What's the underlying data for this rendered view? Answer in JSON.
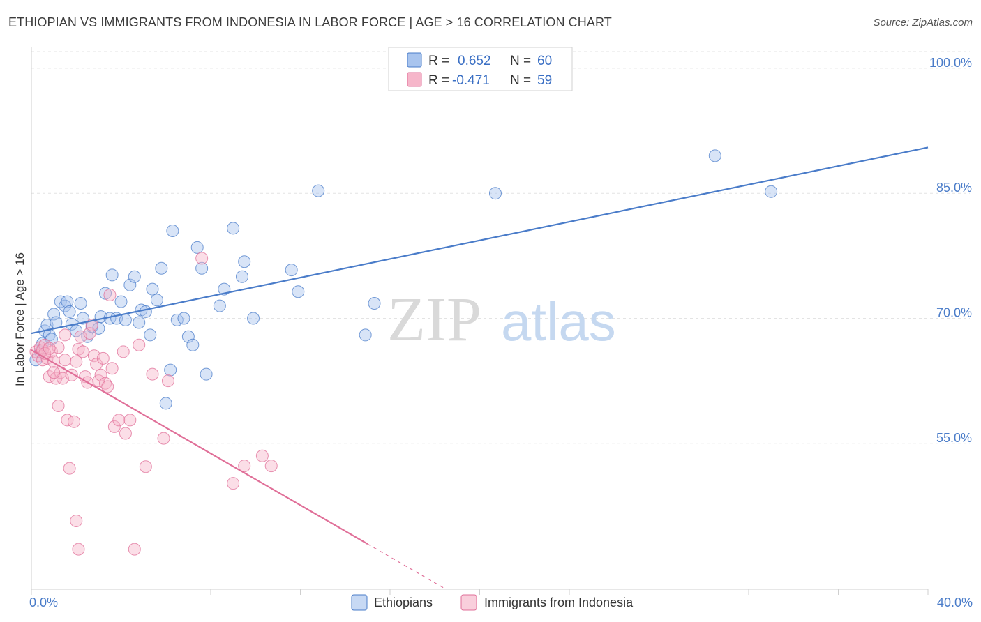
{
  "title": "ETHIOPIAN VS IMMIGRANTS FROM INDONESIA IN LABOR FORCE | AGE > 16 CORRELATION CHART",
  "source": "Source: ZipAtlas.com",
  "watermark": {
    "zip": "ZIP",
    "atlas": "atlas"
  },
  "legend_box": {
    "rows": [
      {
        "r_label": "R = ",
        "r_value": "0.652",
        "n_label": "N = ",
        "n_value": "60",
        "color": "#a8c4ee"
      },
      {
        "r_label": "R = ",
        "r_value": "-0.471",
        "n_label": "N = ",
        "n_value": "59",
        "color": "#f6b6ca"
      }
    ]
  },
  "chart_data": {
    "type": "scatter",
    "title": "ETHIOPIAN VS IMMIGRANTS FROM INDONESIA IN LABOR FORCE | AGE > 16 CORRELATION CHART",
    "xlabel": "",
    "ylabel": "In Labor Force | Age > 16",
    "xlim": [
      0,
      40
    ],
    "ylim": [
      37.5,
      102.5
    ],
    "x_tick_labels": [
      "0.0%",
      "40.0%"
    ],
    "y_ticks": [
      55,
      70,
      85,
      100
    ],
    "y_tick_labels": [
      "55.0%",
      "70.0%",
      "85.0%",
      "100.0%"
    ],
    "grid": true,
    "series": [
      {
        "name": "Ethiopians",
        "color": "#4a7cc9",
        "fill": "#a8c4ee",
        "trendline": {
          "x0": 0,
          "y0": 68.2,
          "x1": 40,
          "y1": 90.5,
          "dashed_from_x": null
        },
        "points": [
          [
            0.2,
            65.0
          ],
          [
            0.4,
            66.0
          ],
          [
            0.5,
            67.0
          ],
          [
            0.6,
            68.5
          ],
          [
            0.7,
            69.2
          ],
          [
            0.8,
            68.0
          ],
          [
            0.9,
            67.5
          ],
          [
            1.0,
            70.5
          ],
          [
            1.1,
            69.5
          ],
          [
            1.3,
            72.0
          ],
          [
            1.5,
            71.5
          ],
          [
            1.6,
            72.0
          ],
          [
            1.7,
            70.8
          ],
          [
            1.8,
            69.3
          ],
          [
            2.0,
            68.5
          ],
          [
            2.2,
            71.8
          ],
          [
            2.3,
            70.0
          ],
          [
            2.5,
            67.8
          ],
          [
            2.7,
            69.0
          ],
          [
            3.0,
            68.8
          ],
          [
            3.1,
            70.2
          ],
          [
            3.3,
            73.0
          ],
          [
            3.5,
            70.0
          ],
          [
            3.6,
            75.2
          ],
          [
            3.8,
            70.0
          ],
          [
            4.0,
            72.0
          ],
          [
            4.2,
            69.8
          ],
          [
            4.4,
            74.0
          ],
          [
            4.6,
            75.0
          ],
          [
            4.8,
            69.5
          ],
          [
            4.9,
            71.0
          ],
          [
            5.1,
            70.8
          ],
          [
            5.3,
            68.0
          ],
          [
            5.4,
            73.5
          ],
          [
            5.6,
            72.2
          ],
          [
            5.8,
            76.0
          ],
          [
            6.0,
            59.8
          ],
          [
            6.2,
            63.8
          ],
          [
            6.3,
            80.5
          ],
          [
            6.5,
            69.8
          ],
          [
            6.8,
            70.0
          ],
          [
            7.0,
            67.8
          ],
          [
            7.2,
            66.8
          ],
          [
            7.4,
            78.5
          ],
          [
            7.6,
            76.0
          ],
          [
            7.8,
            63.3
          ],
          [
            8.4,
            71.5
          ],
          [
            8.6,
            73.5
          ],
          [
            9.0,
            80.8
          ],
          [
            9.4,
            75.0
          ],
          [
            9.5,
            76.8
          ],
          [
            9.9,
            70.0
          ],
          [
            11.6,
            75.8
          ],
          [
            11.9,
            73.2
          ],
          [
            12.8,
            85.3
          ],
          [
            14.9,
            68.0
          ],
          [
            15.3,
            71.8
          ],
          [
            20.7,
            85.0
          ],
          [
            30.5,
            89.5
          ],
          [
            33.0,
            85.2
          ]
        ]
      },
      {
        "name": "Immigrants from Indonesia",
        "color": "#e06f98",
        "fill": "#f6b6ca",
        "trendline": {
          "x0": 0,
          "y0": 66.2,
          "x1": 18.5,
          "y1": 37.5,
          "dashed_from_x": 15.0
        },
        "points": [
          [
            0.2,
            66.0
          ],
          [
            0.3,
            65.5
          ],
          [
            0.4,
            66.5
          ],
          [
            0.5,
            65.0
          ],
          [
            0.6,
            66.8
          ],
          [
            0.7,
            65.2
          ],
          [
            0.8,
            63.0
          ],
          [
            0.9,
            66.0
          ],
          [
            1.0,
            64.8
          ],
          [
            1.1,
            62.8
          ],
          [
            1.2,
            66.5
          ],
          [
            1.3,
            63.5
          ],
          [
            1.4,
            62.8
          ],
          [
            1.5,
            65.0
          ],
          [
            1.6,
            57.8
          ],
          [
            1.7,
            52.0
          ],
          [
            1.8,
            63.2
          ],
          [
            1.9,
            57.6
          ],
          [
            2.0,
            64.8
          ],
          [
            2.1,
            66.3
          ],
          [
            2.2,
            67.8
          ],
          [
            2.3,
            66.0
          ],
          [
            2.4,
            63.0
          ],
          [
            2.5,
            62.3
          ],
          [
            2.6,
            68.2
          ],
          [
            2.7,
            69.2
          ],
          [
            2.8,
            65.5
          ],
          [
            2.9,
            64.5
          ],
          [
            3.0,
            62.5
          ],
          [
            3.1,
            63.2
          ],
          [
            3.2,
            65.2
          ],
          [
            3.3,
            62.2
          ],
          [
            3.4,
            61.8
          ],
          [
            3.5,
            72.8
          ],
          [
            3.6,
            64.0
          ],
          [
            3.7,
            57.0
          ],
          [
            3.9,
            57.8
          ],
          [
            4.1,
            66.0
          ],
          [
            4.2,
            56.2
          ],
          [
            4.4,
            57.8
          ],
          [
            4.6,
            42.3
          ],
          [
            4.8,
            66.8
          ],
          [
            5.1,
            52.2
          ],
          [
            5.4,
            63.3
          ],
          [
            5.9,
            55.6
          ],
          [
            6.1,
            62.5
          ],
          [
            7.6,
            77.2
          ],
          [
            9.0,
            50.2
          ],
          [
            9.5,
            52.3
          ],
          [
            10.3,
            53.5
          ],
          [
            10.7,
            52.3
          ],
          [
            1.2,
            59.5
          ],
          [
            2.0,
            45.7
          ],
          [
            2.1,
            42.3
          ],
          [
            0.5,
            66.2
          ],
          [
            0.6,
            65.8
          ],
          [
            0.8,
            66.4
          ],
          [
            1.0,
            63.5
          ],
          [
            1.5,
            68.0
          ]
        ]
      }
    ]
  },
  "bottom_legend": [
    {
      "label": "Ethiopians",
      "color": "#a8c4ee"
    },
    {
      "label": "Immigrants from Indonesia",
      "color": "#f6b6ca"
    }
  ]
}
